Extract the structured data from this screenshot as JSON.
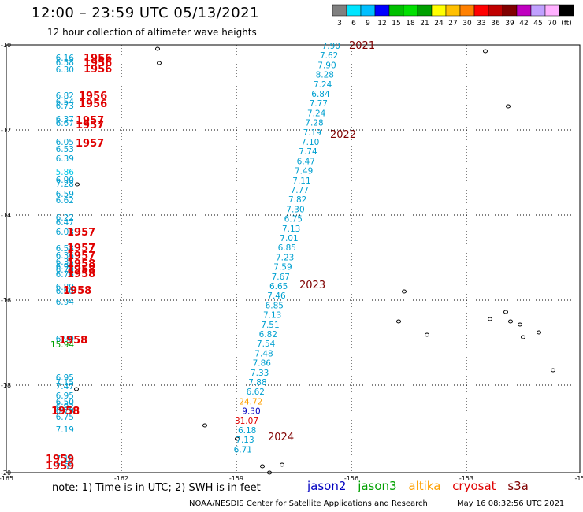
{
  "title": "12:00 – 23:59 UTC 05/13/2021",
  "subtitle": "12 hour collection of altimeter wave heights",
  "colorbar": {
    "labels": [
      "3",
      "6",
      "9",
      "12",
      "15",
      "18",
      "21",
      "24",
      "27",
      "30",
      "33",
      "36",
      "39",
      "42",
      "45",
      "70",
      "(ft)"
    ],
    "colors": [
      "#808080",
      "#00e5ff",
      "#00bfff",
      "#0000ff",
      "#00c000",
      "#00e000",
      "#00a000",
      "#ffff00",
      "#ffc000",
      "#ff8000",
      "#ff0000",
      "#c00000",
      "#800000",
      "#c000c0",
      "#c0a0ff",
      "#ffb0ff",
      "#000000"
    ]
  },
  "axes": {
    "x_ticks": [
      "-165",
      "-162",
      "-159",
      "-156",
      "-153",
      "-15"
    ],
    "y_ticks": [
      "-10",
      "-12",
      "-14",
      "-16",
      "-18",
      "-20"
    ]
  },
  "colors": {
    "track": "#00a0d0",
    "year_dark": "#800000",
    "year_red": "#e00000",
    "jason3_green": "#00a000",
    "altika_orange": "#ffa000",
    "jason2_blue": "#0000c0"
  },
  "main_track": [
    {
      "v": "7.90",
      "c": "#00a0d0"
    },
    {
      "v": "7.62",
      "c": "#00a0d0"
    },
    {
      "v": "7.90",
      "c": "#00a0d0"
    },
    {
      "v": "8.28",
      "c": "#00a0d0"
    },
    {
      "v": "7.24",
      "c": "#00a0d0"
    },
    {
      "v": "6.84",
      "c": "#00a0d0"
    },
    {
      "v": "7.77",
      "c": "#00a0d0"
    },
    {
      "v": "7.24",
      "c": "#00a0d0"
    },
    {
      "v": "7.28",
      "c": "#00a0d0"
    },
    {
      "v": "7.19",
      "c": "#00a0d0"
    },
    {
      "v": "7.10",
      "c": "#00a0d0"
    },
    {
      "v": "7.74",
      "c": "#00a0d0"
    },
    {
      "v": "6.47",
      "c": "#00a0d0"
    },
    {
      "v": "7.49",
      "c": "#00a0d0"
    },
    {
      "v": "7.11",
      "c": "#00a0d0"
    },
    {
      "v": "7.77",
      "c": "#00a0d0"
    },
    {
      "v": "7.82",
      "c": "#00a0d0"
    },
    {
      "v": "7.30",
      "c": "#00a0d0"
    },
    {
      "v": "6.75",
      "c": "#00a0d0"
    },
    {
      "v": "7.13",
      "c": "#00a0d0"
    },
    {
      "v": "7.01",
      "c": "#00a0d0"
    },
    {
      "v": "6.85",
      "c": "#00a0d0"
    },
    {
      "v": "7.23",
      "c": "#00a0d0"
    },
    {
      "v": "7.59",
      "c": "#00a0d0"
    },
    {
      "v": "7.67",
      "c": "#00a0d0"
    },
    {
      "v": "6.65",
      "c": "#00a0d0"
    },
    {
      "v": "7.46",
      "c": "#00a0d0"
    },
    {
      "v": "6.85",
      "c": "#00a0d0"
    },
    {
      "v": "7.13",
      "c": "#00a0d0"
    },
    {
      "v": "7.51",
      "c": "#00a0d0"
    },
    {
      "v": "6.82",
      "c": "#00a0d0"
    },
    {
      "v": "7.54",
      "c": "#00a0d0"
    },
    {
      "v": "7.48",
      "c": "#00a0d0"
    },
    {
      "v": "7.86",
      "c": "#00a0d0"
    },
    {
      "v": "7.33",
      "c": "#00a0d0"
    },
    {
      "v": "7.88",
      "c": "#00a0d0"
    },
    {
      "v": "6.62",
      "c": "#00a0d0"
    },
    {
      "v": "24.72",
      "c": "#ffa000"
    },
    {
      "v": "9.30",
      "c": "#0000c0"
    },
    {
      "v": "31.07",
      "c": "#e00000"
    },
    {
      "v": "6.18",
      "c": "#00a0d0"
    },
    {
      "v": "7.13",
      "c": "#00a0d0"
    },
    {
      "v": "6.71",
      "c": "#00a0d0"
    }
  ],
  "track_years": [
    "2021",
    "2022",
    "2023",
    "2024"
  ],
  "left_values": [
    {
      "v": "6.16",
      "c": "#00a0d0"
    },
    {
      "v": "6.58",
      "c": "#00a0d0"
    },
    {
      "v": "6.30",
      "c": "#00a0d0"
    },
    {
      "v": "6.82",
      "c": "#00a0d0"
    },
    {
      "v": "6.54",
      "c": "#00a0d0"
    },
    {
      "v": "6.73",
      "c": "#00a0d0"
    },
    {
      "v": "6.37",
      "c": "#00a0d0"
    },
    {
      "v": "6.67",
      "c": "#00a0d0"
    },
    {
      "v": "6.05",
      "c": "#00a0d0"
    },
    {
      "v": "6.53",
      "c": "#00a0d0"
    },
    {
      "v": "6.39",
      "c": "#00a0d0"
    },
    {
      "v": "5.86",
      "c": "#00c8e8"
    },
    {
      "v": "6.90",
      "c": "#00a0d0"
    },
    {
      "v": "7.28",
      "c": "#00a0d0"
    },
    {
      "v": "6.59",
      "c": "#00a0d0"
    },
    {
      "v": "6.62",
      "c": "#00a0d0"
    },
    {
      "v": "6.22",
      "c": "#00a0d0"
    },
    {
      "v": "6.47",
      "c": "#00a0d0"
    },
    {
      "v": "6.03",
      "c": "#00a0d0"
    },
    {
      "v": "6.58",
      "c": "#00a0d0"
    },
    {
      "v": "6.36",
      "c": "#00a0d0"
    },
    {
      "v": "6.35",
      "c": "#00a0d0"
    },
    {
      "v": "6.92",
      "c": "#00a0d0"
    },
    {
      "v": "6.79",
      "c": "#00a0d0"
    },
    {
      "v": "6.76",
      "c": "#00a0d0"
    },
    {
      "v": "6.89",
      "c": "#00a0d0"
    },
    {
      "v": "6.60",
      "c": "#00a0d0"
    },
    {
      "v": "6.94",
      "c": "#00a0d0"
    },
    {
      "v": "6.99",
      "c": "#00a0d0"
    },
    {
      "v": "15.94",
      "c": "#00a000"
    },
    {
      "v": "6.95",
      "c": "#00a0d0"
    },
    {
      "v": "7.15",
      "c": "#00a0d0"
    },
    {
      "v": "7.47",
      "c": "#00a0d0"
    },
    {
      "v": "6.95",
      "c": "#00a0d0"
    },
    {
      "v": "6.50",
      "c": "#00a0d0"
    },
    {
      "v": "6.92",
      "c": "#00a0d0"
    },
    {
      "v": "6.79",
      "c": "#00a0d0"
    },
    {
      "v": "6.75",
      "c": "#00a0d0"
    },
    {
      "v": "7.19",
      "c": "#00a0d0"
    },
    {
      "v": "7.18",
      "c": "#00a0d0"
    },
    {
      "v": "7.65",
      "c": "#00a0d0"
    }
  ],
  "left_years": [
    "1956",
    "1956",
    "1956",
    "1956",
    "1956",
    "1957",
    "1957",
    "1957",
    "1957",
    "1957",
    "1957",
    "1958",
    "1958",
    "1958",
    "1958",
    "1958",
    "1958",
    "1959",
    "1959"
  ],
  "footer_note": "note: 1) Time is in UTC; 2) SWH is in feet",
  "satellites": [
    {
      "name": "jason2",
      "color": "#0000c0"
    },
    {
      "name": "jason3",
      "color": "#00a000"
    },
    {
      "name": "altika",
      "color": "#ffa000"
    },
    {
      "name": "cryosat",
      "color": "#e00000"
    },
    {
      "name": "s3a",
      "color": "#800000"
    }
  ],
  "credits": "NOAA/NESDIS Center for Satellite Applications and Research",
  "timestamp": "May 16 08:32:56 UTC 2021"
}
